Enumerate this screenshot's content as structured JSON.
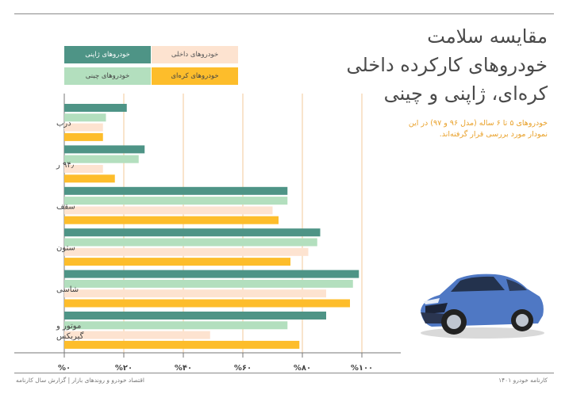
{
  "title_lines": [
    "مقایسه سلامت",
    "خودروهای کارکرده داخلی",
    "کره‌ای، ژاپنی و چینی"
  ],
  "subtitle": "خودروهای ۵ تا ۶ ساله (مدل ۹۶ و ۹۷) در این نمودار مورد بررسی قرار گرفته‌اند.",
  "footer": {
    "left": "اقتصاد خودرو و روندهای بازار | گزارش سال کارنامه",
    "right": "کارنامه خودرو ۱۴۰۱"
  },
  "legend": [
    {
      "label": "خودروهای ژاپنی",
      "color": "#4e9486",
      "text_color": "#ffffff"
    },
    {
      "label": "خودروهای داخلی",
      "color": "#fde3d0",
      "text_color": "#555555"
    },
    {
      "label": "خودروهای چینی",
      "color": "#b3dfbe",
      "text_color": "#444444"
    },
    {
      "label": "خودروهای کره‌ای",
      "color": "#fdbd2b",
      "text_color": "#444444"
    }
  ],
  "chart_data": {
    "type": "bar",
    "orientation": "horizontal",
    "categories": [
      "درب",
      "۹۴٫ ر",
      "سقف",
      "ستون",
      "شاسی",
      "موتور و گیربکس"
    ],
    "series": [
      {
        "name": "خودروهای ژاپنی",
        "color": "#4e9486",
        "values": [
          21,
          27,
          75,
          86,
          99,
          88
        ]
      },
      {
        "name": "خودروهای چینی",
        "color": "#b3dfbe",
        "values": [
          14,
          25,
          75,
          85,
          97,
          75
        ]
      },
      {
        "name": "خودروهای داخلی",
        "color": "#fde3d0",
        "values": [
          13,
          13,
          70,
          82,
          88,
          49
        ]
      },
      {
        "name": "خودروهای کره‌ای",
        "color": "#fdbd2b",
        "values": [
          13,
          17,
          72,
          76,
          96,
          79
        ]
      }
    ],
    "xlim": [
      0,
      100
    ],
    "ticks": [
      "%۰",
      "%۲۰",
      "%۴۰",
      "%۶۰",
      "%۸۰",
      "%۱۰۰"
    ],
    "grid": true,
    "legend_position": "top"
  }
}
